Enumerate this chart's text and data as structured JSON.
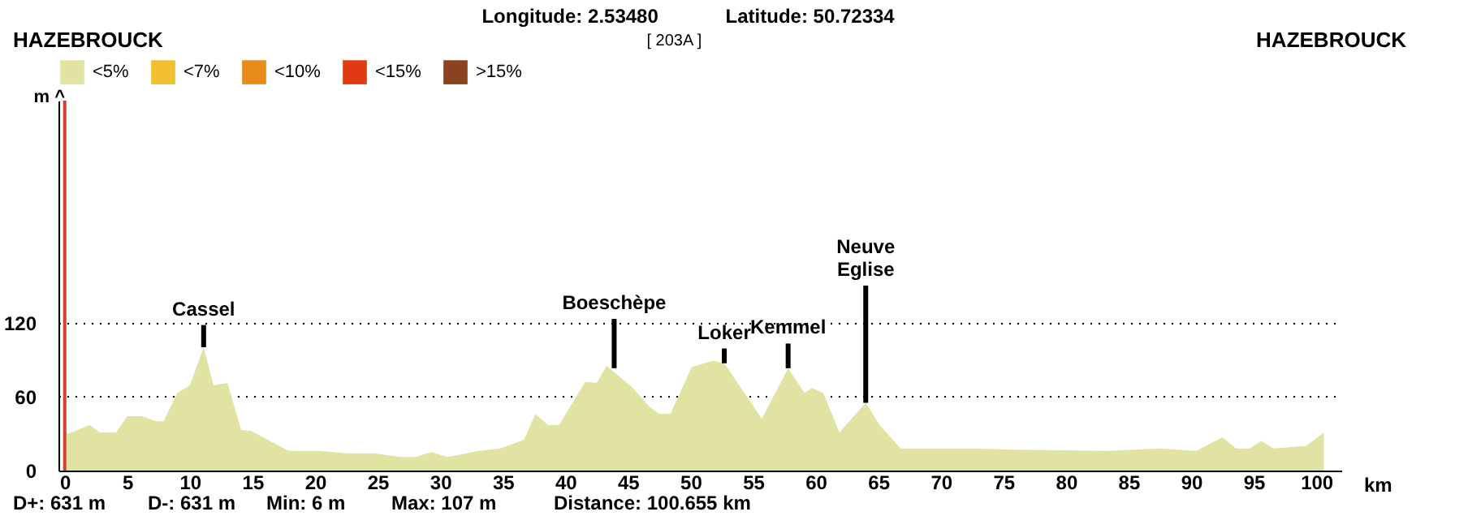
{
  "chart_data": {
    "type": "area",
    "x": [
      0,
      0.3,
      2,
      2.8,
      4.1,
      5,
      6.2,
      7.3,
      7.9,
      9,
      10,
      11.1,
      11.9,
      13,
      14.1,
      14.9,
      17.9,
      20.4,
      22.5,
      24.7,
      26.8,
      28,
      29.3,
      30.6,
      33.1,
      34.8,
      36.7,
      37.6,
      38.6,
      39.5,
      41.6,
      42.5,
      43.3,
      45.4,
      46.7,
      47.5,
      48.4,
      50.1,
      51.8,
      52.7,
      55.7,
      57.8,
      59.1,
      59.7,
      60.6,
      61.9,
      64,
      65.1,
      66.8,
      69.8,
      72.7,
      75.7,
      83.4,
      87.6,
      90.4,
      92.5,
      93.6,
      94.7,
      95.6,
      96.6,
      99.2,
      100.6
    ],
    "series": [
      {
        "name": "<5%",
        "color": "#e1e3a3",
        "values": [
          30,
          30,
          37,
          31,
          31,
          44,
          44,
          40,
          40,
          63,
          69,
          100,
          69,
          71,
          33,
          32,
          16,
          16,
          14,
          14,
          11,
          11,
          15,
          11,
          16,
          18,
          25,
          46,
          37,
          37,
          72,
          71,
          85,
          67,
          52,
          46,
          46,
          84,
          89,
          87,
          42,
          83,
          63,
          67,
          63,
          31,
          55,
          37,
          18,
          18,
          18,
          17,
          16,
          18,
          16,
          27,
          18,
          18,
          24,
          18,
          20,
          31
        ]
      },
      {
        "name": "<7%",
        "color": "#f0c030",
        "values": [
          null,
          null,
          null,
          null,
          null,
          null,
          null,
          null,
          null,
          null,
          null,
          null,
          null,
          null,
          null,
          null,
          null,
          null,
          null,
          null,
          null,
          null,
          null,
          null,
          null,
          null,
          null,
          null,
          null,
          null,
          null,
          null,
          null,
          null,
          null,
          null,
          null,
          null,
          null,
          null,
          null,
          null,
          null,
          null,
          null,
          null,
          null,
          null,
          null,
          null,
          null,
          null,
          null,
          null,
          null,
          null,
          null,
          null,
          null,
          null,
          null,
          null
        ]
      },
      {
        "name": "<10%",
        "color": "#e88a1c",
        "values": [
          null,
          null,
          null,
          null,
          null,
          null,
          null,
          null,
          null,
          null,
          null,
          null,
          null,
          null,
          null,
          null,
          null,
          null,
          null,
          null,
          null,
          null,
          null,
          null,
          null,
          null,
          null,
          null,
          null,
          null,
          null,
          null,
          null,
          null,
          null,
          null,
          null,
          null,
          null,
          null,
          null,
          null,
          null,
          null,
          null,
          null,
          null,
          null,
          null,
          null,
          null,
          null,
          null,
          null,
          null,
          null,
          null,
          null,
          null,
          null,
          null,
          null
        ]
      },
      {
        "name": "<15%",
        "color": "#e03a12",
        "values": [
          null,
          null,
          null,
          null,
          null,
          null,
          null,
          null,
          null,
          null,
          null,
          null,
          null,
          null,
          null,
          null,
          null,
          null,
          null,
          null,
          null,
          null,
          null,
          null,
          null,
          null,
          null,
          null,
          null,
          null,
          null,
          null,
          null,
          null,
          null,
          null,
          null,
          null,
          null,
          null,
          null,
          null,
          null,
          null,
          null,
          null,
          null,
          null,
          null,
          null,
          null,
          null,
          null,
          null,
          null,
          null,
          null,
          null,
          null,
          null,
          null,
          null
        ]
      },
      {
        "name": ">15%",
        "color": "#8a4220",
        "values": [
          null,
          null,
          null,
          null,
          null,
          null,
          null,
          null,
          null,
          null,
          null,
          null,
          null,
          null,
          null,
          null,
          null,
          null,
          null,
          null,
          null,
          null,
          null,
          null,
          null,
          null,
          null,
          null,
          null,
          null,
          null,
          null,
          null,
          null,
          null,
          null,
          null,
          null,
          null,
          null,
          null,
          null,
          null,
          null,
          null,
          null,
          null,
          null,
          null,
          null,
          null,
          null,
          null,
          null,
          null,
          null,
          null,
          null,
          null,
          null,
          null,
          null
        ]
      }
    ],
    "xlim": [
      -0.5,
      102
    ],
    "xticks": [
      0,
      5,
      10,
      15,
      20,
      25,
      30,
      35,
      40,
      45,
      50,
      55,
      60,
      65,
      70,
      75,
      80,
      85,
      90,
      95,
      100
    ],
    "ylim": [
      0,
      300
    ],
    "yticks": [
      0,
      60,
      120
    ],
    "xlabel": "km",
    "ylabel": "m ^",
    "grid": "y",
    "legend": "top left",
    "ref_lines": [
      {
        "axis": "x",
        "value": 0,
        "color": "#d04030"
      }
    ],
    "annotations": [
      {
        "text": "Cassel",
        "x": 11.1,
        "y": 100
      },
      {
        "text": "Boeschèpe",
        "x": 43.9,
        "y": 83
      },
      {
        "text": "Loker",
        "x": 52.7,
        "y": 87
      },
      {
        "text": "Kemmel",
        "x": 57.8,
        "y": 83
      },
      {
        "text": "Neuve Eglise",
        "x": 64,
        "y": 55
      },
      "Longitude: 2.53480",
      "Latitude: 50.72334",
      "HAZEBROUCK",
      "[ 203A ]",
      "HAZEBROUCK",
      "D+: 631 m",
      "D-: 631 m",
      "Min: 6 m",
      "Max: 107 m",
      "Distance: 100.655 km"
    ]
  }
}
